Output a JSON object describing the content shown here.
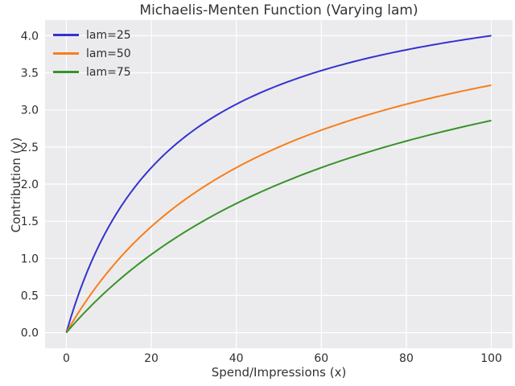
{
  "figure": {
    "background": "#ffffff",
    "plot_background": "#ebebee",
    "grid_color": "#ffffff",
    "text_color": "#2e2e2e"
  },
  "chart_data": {
    "type": "line",
    "title": "Michaelis-Menten Function (Varying lam)",
    "xlabel": "Spend/Impressions (x)",
    "ylabel": "Contribution (y)",
    "xlim": [
      -5,
      105
    ],
    "ylim": [
      -0.21,
      4.21
    ],
    "x_ticks": [
      0,
      20,
      40,
      60,
      80,
      100
    ],
    "x_tick_labels": [
      "0",
      "20",
      "40",
      "60",
      "80",
      "100"
    ],
    "y_ticks": [
      0.0,
      0.5,
      1.0,
      1.5,
      2.0,
      2.5,
      3.0,
      3.5,
      4.0
    ],
    "y_tick_labels": [
      "0.0",
      "0.5",
      "1.0",
      "1.5",
      "2.0",
      "2.5",
      "3.0",
      "3.5",
      "4.0"
    ],
    "grid": true,
    "legend_position": "upper left",
    "function": "y = vmax * x / (lam + x)",
    "vmax": 5,
    "x": [
      0,
      5,
      10,
      15,
      20,
      25,
      30,
      35,
      40,
      45,
      50,
      55,
      60,
      65,
      70,
      75,
      80,
      85,
      90,
      95,
      100
    ],
    "series": [
      {
        "name": "lam=25",
        "lam": 25,
        "color": "#3333cd",
        "values": [
          0,
          0.833,
          1.429,
          1.875,
          2.222,
          2.5,
          2.727,
          2.917,
          3.077,
          3.214,
          3.333,
          3.438,
          3.529,
          3.611,
          3.684,
          3.75,
          3.81,
          3.864,
          3.913,
          3.958,
          4.0
        ]
      },
      {
        "name": "lam=50",
        "lam": 50,
        "color": "#f87e1a",
        "values": [
          0,
          0.455,
          0.833,
          1.154,
          1.429,
          1.667,
          1.875,
          2.059,
          2.222,
          2.368,
          2.5,
          2.619,
          2.727,
          2.826,
          2.917,
          3.0,
          3.077,
          3.148,
          3.214,
          3.276,
          3.333
        ]
      },
      {
        "name": "lam=75",
        "lam": 75,
        "color": "#389328",
        "values": [
          0,
          0.313,
          0.588,
          0.833,
          1.053,
          1.25,
          1.429,
          1.591,
          1.739,
          1.875,
          2.0,
          2.115,
          2.222,
          2.321,
          2.414,
          2.5,
          2.581,
          2.656,
          2.727,
          2.794,
          2.857
        ]
      }
    ]
  }
}
